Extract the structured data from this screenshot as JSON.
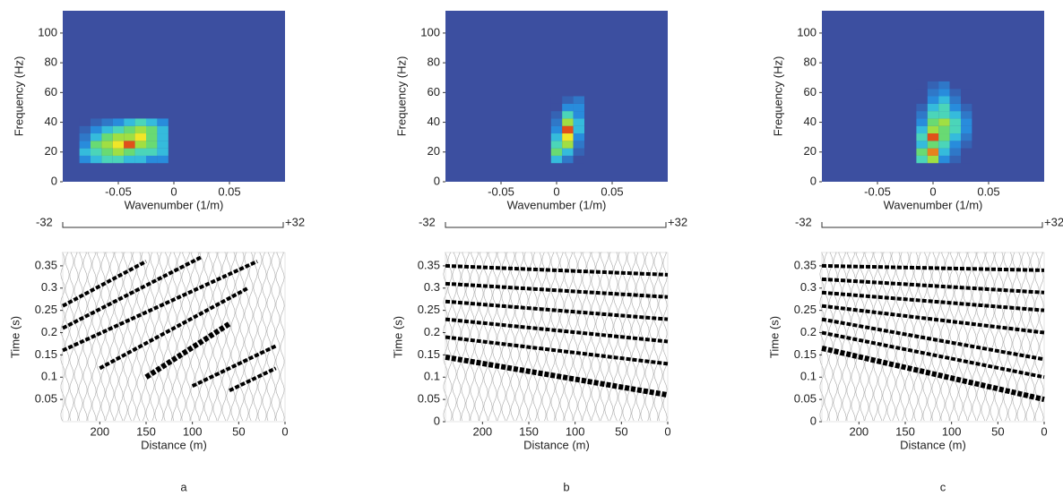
{
  "chart_data": [
    {
      "type": "heatmap",
      "xlabel": "Wavenumber (1/m)",
      "ylabel": "Frequency (Hz)",
      "xlim": [
        -0.1,
        0.1
      ],
      "ylim": [
        0,
        115
      ],
      "xticks": [
        -0.05,
        0,
        0.05
      ],
      "yticks": [
        0,
        20,
        40,
        60,
        80,
        100
      ],
      "cells": {
        "x": [
          -0.08,
          -0.07,
          -0.06,
          -0.05,
          -0.04,
          -0.03,
          -0.02,
          -0.01,
          -0.08,
          -0.07,
          -0.06,
          -0.05,
          -0.04,
          -0.03,
          -0.02,
          -0.01,
          -0.08,
          -0.07,
          -0.06,
          -0.05,
          -0.04,
          -0.03,
          -0.02,
          -0.01,
          -0.08,
          -0.07,
          -0.06,
          -0.05,
          -0.04,
          -0.03,
          -0.02,
          -0.01,
          -0.08,
          -0.07,
          -0.06,
          -0.05,
          -0.04,
          -0.03,
          -0.02,
          -0.01,
          -0.08,
          -0.07,
          -0.06,
          -0.05,
          -0.04,
          -0.03,
          -0.02,
          -0.01
        ],
        "y": [
          15,
          15,
          15,
          15,
          15,
          15,
          15,
          15,
          20,
          20,
          20,
          20,
          20,
          20,
          20,
          20,
          25,
          25,
          25,
          25,
          25,
          25,
          25,
          25,
          30,
          30,
          30,
          30,
          30,
          30,
          30,
          30,
          35,
          35,
          35,
          35,
          35,
          35,
          35,
          35,
          40,
          40,
          40,
          40,
          40,
          40,
          40,
          40
        ],
        "values": [
          0.3,
          0.4,
          0.5,
          0.5,
          0.4,
          0.4,
          0.3,
          0.3,
          0.4,
          0.5,
          0.6,
          0.7,
          0.6,
          0.5,
          0.5,
          0.4,
          0.3,
          0.6,
          0.7,
          0.8,
          0.95,
          0.7,
          0.6,
          0.4,
          0.2,
          0.4,
          0.6,
          0.7,
          0.7,
          0.8,
          0.6,
          0.4,
          0.1,
          0.3,
          0.4,
          0.5,
          0.6,
          0.7,
          0.6,
          0.4,
          0,
          0.1,
          0.2,
          0.3,
          0.4,
          0.5,
          0.4,
          0.3
        ]
      }
    },
    {
      "type": "wiggle",
      "xlabel": "Distance (m)",
      "ylabel": "Time (s)",
      "xlim": [
        240,
        0
      ],
      "ylim": [
        0,
        0.38
      ],
      "xticks": [
        200,
        150,
        100,
        50,
        0
      ],
      "yticks": [
        0.05,
        0.1,
        0.15,
        0.2,
        0.25,
        0.3,
        0.35
      ],
      "color": "#000000",
      "series": [
        {
          "x": [
            150,
            60
          ],
          "values": [
            0.1,
            0.22
          ]
        },
        {
          "x": [
            200,
            40
          ],
          "values": [
            0.12,
            0.3
          ]
        },
        {
          "x": [
            240,
            30
          ],
          "values": [
            0.16,
            0.36
          ]
        },
        {
          "x": [
            240,
            90
          ],
          "values": [
            0.21,
            0.37
          ]
        },
        {
          "x": [
            240,
            150
          ],
          "values": [
            0.26,
            0.36
          ]
        },
        {
          "x": [
            100,
            10
          ],
          "values": [
            0.08,
            0.17
          ]
        },
        {
          "x": [
            60,
            10
          ],
          "values": [
            0.07,
            0.12
          ]
        }
      ]
    },
    {
      "type": "heatmap",
      "xlabel": "Wavenumber (1/m)",
      "ylabel": "Frequency (Hz)",
      "xlim": [
        -0.1,
        0.1
      ],
      "ylim": [
        0,
        115
      ],
      "xticks": [
        -0.05,
        0,
        0.05
      ],
      "yticks": [
        0,
        20,
        40,
        60,
        80,
        100
      ],
      "cells": {
        "x": [
          0,
          0.01,
          0.02,
          0,
          0.01,
          0.02,
          0,
          0.01,
          0.02,
          0,
          0.01,
          0.02,
          0,
          0.01,
          0.02,
          0,
          0.01,
          0.02,
          0,
          0.01,
          0.02,
          0,
          0.01,
          0.02,
          0,
          0.01,
          0.02
        ],
        "y": [
          15,
          15,
          15,
          20,
          20,
          20,
          25,
          25,
          25,
          30,
          30,
          30,
          35,
          35,
          35,
          40,
          40,
          40,
          45,
          45,
          45,
          50,
          50,
          50,
          55,
          55,
          55
        ],
        "values": [
          0.4,
          0.2,
          0,
          0.6,
          0.4,
          0.1,
          0.5,
          0.7,
          0.2,
          0.4,
          0.8,
          0.3,
          0.3,
          0.95,
          0.4,
          0.2,
          0.7,
          0.4,
          0.1,
          0.5,
          0.3,
          0,
          0.3,
          0.3,
          0,
          0.1,
          0.2
        ]
      }
    },
    {
      "type": "wiggle",
      "xlabel": "Distance (m)",
      "ylabel": "Time  (s)",
      "xlim": [
        240,
        0
      ],
      "ylim": [
        0,
        0.38
      ],
      "xticks": [
        200,
        150,
        100,
        50,
        0
      ],
      "yticks": [
        0,
        0.05,
        0.1,
        0.15,
        0.2,
        0.25,
        0.3,
        0.35
      ],
      "color": "#000000",
      "series": [
        {
          "x": [
            240,
            0
          ],
          "values": [
            0.145,
            0.06
          ]
        },
        {
          "x": [
            240,
            0
          ],
          "values": [
            0.19,
            0.13
          ]
        },
        {
          "x": [
            240,
            0
          ],
          "values": [
            0.23,
            0.18
          ]
        },
        {
          "x": [
            240,
            0
          ],
          "values": [
            0.27,
            0.23
          ]
        },
        {
          "x": [
            240,
            0
          ],
          "values": [
            0.31,
            0.28
          ]
        },
        {
          "x": [
            240,
            0
          ],
          "values": [
            0.35,
            0.33
          ]
        }
      ]
    },
    {
      "type": "heatmap",
      "xlabel": "Wavenumber (1/m)",
      "ylabel": "Frequency (Hz)",
      "xlim": [
        -0.1,
        0.1
      ],
      "ylim": [
        0,
        115
      ],
      "xticks": [
        -0.05,
        0,
        0.05
      ],
      "yticks": [
        0,
        20,
        40,
        60,
        80,
        100
      ],
      "cells": {
        "x": [
          -0.01,
          0,
          0.01,
          0.02,
          0.03,
          -0.01,
          0,
          0.01,
          0.02,
          0.03,
          -0.01,
          0,
          0.01,
          0.02,
          0.03,
          -0.01,
          0,
          0.01,
          0.02,
          0.03,
          -0.01,
          0,
          0.01,
          0.02,
          0.03,
          -0.01,
          0,
          0.01,
          0.02,
          0.03,
          -0.01,
          0,
          0.01,
          0.02,
          0.03,
          -0.01,
          0,
          0.01,
          0.02,
          0.03,
          -0.01,
          0,
          0.01,
          0.02,
          0.03,
          -0.01,
          0,
          0.01,
          0.02,
          0.03,
          -0.01,
          0,
          0.01,
          0.02,
          0.03
        ],
        "y": [
          15,
          15,
          15,
          15,
          15,
          20,
          20,
          20,
          20,
          20,
          25,
          25,
          25,
          25,
          25,
          30,
          30,
          30,
          30,
          30,
          35,
          35,
          35,
          35,
          35,
          40,
          40,
          40,
          40,
          40,
          45,
          45,
          45,
          45,
          45,
          50,
          50,
          50,
          50,
          50,
          55,
          55,
          55,
          55,
          55,
          60,
          60,
          60,
          60,
          60,
          65,
          65,
          65,
          65,
          65
        ],
        "values": [
          0.5,
          0.7,
          0.3,
          0.1,
          0,
          0.6,
          0.9,
          0.4,
          0.2,
          0,
          0.4,
          0.6,
          0.5,
          0.3,
          0.1,
          0.5,
          0.95,
          0.6,
          0.4,
          0.2,
          0.4,
          0.7,
          0.6,
          0.5,
          0.3,
          0.3,
          0.6,
          0.7,
          0.5,
          0.3,
          0.2,
          0.5,
          0.5,
          0.4,
          0.2,
          0.1,
          0.4,
          0.5,
          0.3,
          0.1,
          0,
          0.3,
          0.4,
          0.2,
          0,
          0,
          0.2,
          0.3,
          0.1,
          0,
          0,
          0.1,
          0.2,
          0,
          0
        ]
      }
    },
    {
      "type": "wiggle",
      "xlabel": "Distance (m)",
      "ylabel": "Time (s)",
      "xlim": [
        240,
        0
      ],
      "ylim": [
        0,
        0.38
      ],
      "xticks": [
        200,
        150,
        100,
        50,
        0
      ],
      "yticks": [
        0,
        0.05,
        0.1,
        0.15,
        0.2,
        0.25,
        0.3,
        0.35
      ],
      "color": "#000000",
      "series": [
        {
          "x": [
            240,
            0
          ],
          "values": [
            0.165,
            0.05
          ]
        },
        {
          "x": [
            240,
            0
          ],
          "values": [
            0.2,
            0.1
          ]
        },
        {
          "x": [
            240,
            0
          ],
          "values": [
            0.23,
            0.14
          ]
        },
        {
          "x": [
            240,
            0
          ],
          "values": [
            0.26,
            0.2
          ]
        },
        {
          "x": [
            240,
            0
          ],
          "values": [
            0.29,
            0.25
          ]
        },
        {
          "x": [
            240,
            0
          ],
          "values": [
            0.32,
            0.29
          ]
        },
        {
          "x": [
            240,
            0
          ],
          "values": [
            0.35,
            0.34
          ]
        }
      ]
    }
  ],
  "panels": [
    {
      "label": "a",
      "scale_left": "-32",
      "scale_right": "+32"
    },
    {
      "label": "b",
      "scale_left": "-32",
      "scale_right": "+32"
    },
    {
      "label": "c",
      "scale_left": "-32",
      "scale_right": "+32"
    }
  ]
}
